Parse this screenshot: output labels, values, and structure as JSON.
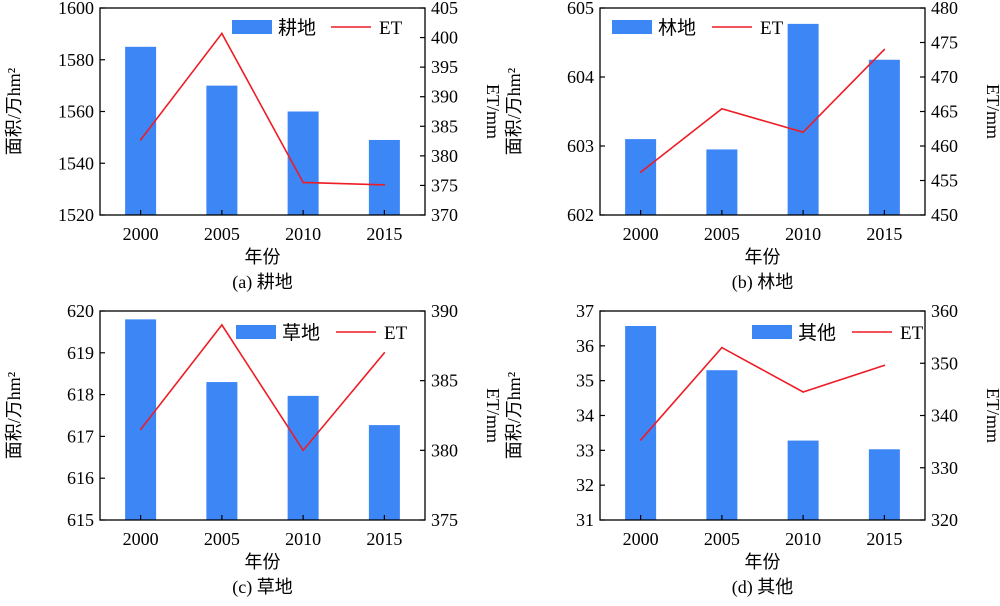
{
  "chart_data": [
    {
      "type": "bar",
      "caption": "(a) 耕地",
      "categories": [
        "2000",
        "2005",
        "2010",
        "2015"
      ],
      "xlabel": "年份",
      "ylabel": "面积/万hm²",
      "y2label": "ET/mm",
      "ylim": [
        1520,
        1600
      ],
      "yticks": [
        1520,
        1540,
        1560,
        1580,
        1600
      ],
      "y2lim": [
        370,
        405
      ],
      "y2ticks": [
        370,
        375,
        380,
        385,
        390,
        395,
        400,
        405
      ],
      "bar_series": {
        "name": "耕地",
        "values": [
          1585,
          1570,
          1560,
          1549
        ]
      },
      "line_series": {
        "name": "ET",
        "values": [
          382.7,
          400.7,
          375.5,
          375.1
        ]
      },
      "legend": "top-right"
    },
    {
      "type": "bar",
      "caption": "(b) 林地",
      "categories": [
        "2000",
        "2005",
        "2010",
        "2015"
      ],
      "xlabel": "年份",
      "ylabel": "面积/万hm²",
      "y2label": "ET/mm",
      "ylim": [
        602,
        605
      ],
      "yticks": [
        602,
        603,
        604,
        605
      ],
      "y2lim": [
        450,
        480
      ],
      "y2ticks": [
        450,
        455,
        460,
        465,
        470,
        475,
        480
      ],
      "bar_series": {
        "name": "林地",
        "values": [
          603.1,
          602.95,
          604.77,
          604.25
        ]
      },
      "line_series": {
        "name": "ET",
        "values": [
          456.2,
          465.4,
          462.0,
          474.0
        ]
      },
      "legend": "top-left"
    },
    {
      "type": "bar",
      "caption": "(c) 草地",
      "categories": [
        "2000",
        "2005",
        "2010",
        "2015"
      ],
      "xlabel": "年份",
      "ylabel": "面积/万hm²",
      "y2label": "ET/mm",
      "ylim": [
        615,
        620
      ],
      "yticks": [
        615,
        616,
        617,
        618,
        619,
        620
      ],
      "y2lim": [
        375,
        390
      ],
      "y2ticks": [
        375,
        380,
        385,
        390
      ],
      "bar_series": {
        "name": "草地",
        "values": [
          619.8,
          618.3,
          617.97,
          617.27
        ]
      },
      "line_series": {
        "name": "ET",
        "values": [
          381.5,
          389.0,
          380.0,
          387.0
        ]
      },
      "legend": "top-right"
    },
    {
      "type": "bar",
      "caption": "(d) 其他",
      "categories": [
        "2000",
        "2005",
        "2010",
        "2015"
      ],
      "xlabel": "年份",
      "ylabel": "面积/万hm²",
      "y2label": "ET/mm",
      "ylim": [
        31,
        37
      ],
      "yticks": [
        31,
        32,
        33,
        34,
        35,
        36,
        37
      ],
      "y2lim": [
        320,
        360
      ],
      "y2ticks": [
        320,
        330,
        340,
        350,
        360
      ],
      "bar_series": {
        "name": "其他",
        "values": [
          36.57,
          35.3,
          33.28,
          33.03
        ]
      },
      "line_series": {
        "name": "ET",
        "values": [
          335.3,
          353.0,
          344.5,
          349.6
        ]
      },
      "legend": "top-right"
    }
  ],
  "colors": {
    "bar": "#3D86F5",
    "line": "#EE1C25"
  }
}
